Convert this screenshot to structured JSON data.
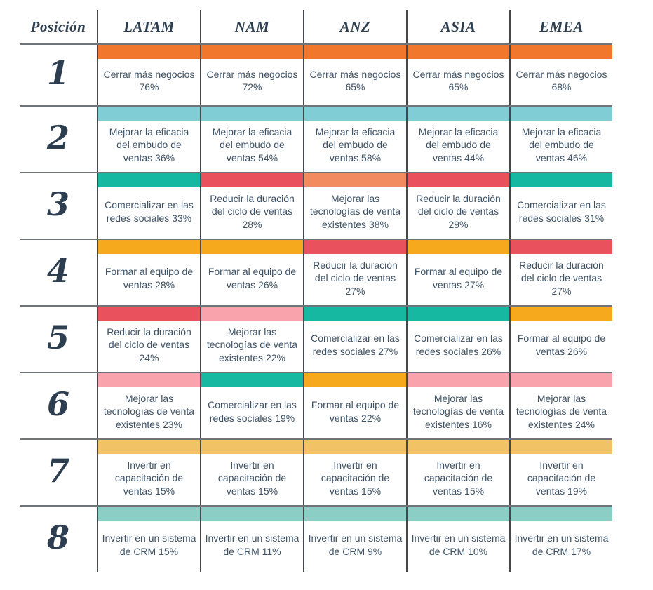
{
  "palette": {
    "orange": "#F0772B",
    "sky": "#81CDD6",
    "green": "#16B8A1",
    "red": "#E9515D",
    "salmon": "#F28B60",
    "amber": "#F6A91D",
    "pink": "#F9A4AD",
    "gold": "#F2C266",
    "seafoam": "#8BCEC6"
  },
  "text_colors": {
    "header": "#2c3e50",
    "body": "#3e5266"
  },
  "chart_data": {
    "type": "table",
    "title": "",
    "columns": [
      "Posición",
      "LATAM",
      "NAM",
      "ANZ",
      "ASIA",
      "EMEA"
    ],
    "rows": [
      {
        "position": "1",
        "cells": [
          {
            "label": "Cerrar más negocios",
            "pct": 76,
            "color": "orange"
          },
          {
            "label": "Cerrar más negocios",
            "pct": 72,
            "color": "orange"
          },
          {
            "label": "Cerrar más negocios",
            "pct": 65,
            "color": "orange"
          },
          {
            "label": "Cerrar más negocios",
            "pct": 65,
            "color": "orange"
          },
          {
            "label": "Cerrar más negocios",
            "pct": 68,
            "color": "orange"
          }
        ]
      },
      {
        "position": "2",
        "cells": [
          {
            "label": "Mejorar la eficacia del embudo de ventas",
            "pct": 36,
            "color": "sky"
          },
          {
            "label": "Mejorar la eficacia del embudo de ventas",
            "pct": 54,
            "color": "sky"
          },
          {
            "label": "Mejorar la eficacia del embudo de ventas",
            "pct": 58,
            "color": "sky"
          },
          {
            "label": "Mejorar la eficacia del embudo de ventas",
            "pct": 44,
            "color": "sky"
          },
          {
            "label": "Mejorar la eficacia del embudo de ventas",
            "pct": 46,
            "color": "sky"
          }
        ]
      },
      {
        "position": "3",
        "cells": [
          {
            "label": "Comercializar en las redes sociales",
            "pct": 33,
            "color": "green"
          },
          {
            "label": "Reducir la duración del ciclo de ventas",
            "pct": 28,
            "color": "red"
          },
          {
            "label": "Mejorar las tecnologías de venta existentes",
            "pct": 38,
            "color": "salmon"
          },
          {
            "label": "Reducir la duración del ciclo de ventas",
            "pct": 29,
            "color": "red"
          },
          {
            "label": "Comercializar en las redes sociales",
            "pct": 31,
            "color": "green"
          }
        ]
      },
      {
        "position": "4",
        "cells": [
          {
            "label": "Formar al equipo de ventas",
            "pct": 28,
            "color": "amber"
          },
          {
            "label": "Formar al equipo de ventas",
            "pct": 26,
            "color": "amber"
          },
          {
            "label": "Reducir la duración del ciclo de ventas",
            "pct": 27,
            "color": "red"
          },
          {
            "label": "Formar al equipo de ventas",
            "pct": 27,
            "color": "amber"
          },
          {
            "label": "Reducir la duración del ciclo de ventas",
            "pct": 27,
            "color": "red"
          }
        ]
      },
      {
        "position": "5",
        "cells": [
          {
            "label": "Reducir la duración del ciclo de ventas",
            "pct": 24,
            "color": "red"
          },
          {
            "label": "Mejorar las tecnologías de venta existentes",
            "pct": 22,
            "color": "pink"
          },
          {
            "label": "Comercializar en las redes sociales",
            "pct": 27,
            "color": "green"
          },
          {
            "label": "Comercializar en las redes sociales",
            "pct": 26,
            "color": "green"
          },
          {
            "label": "Formar al equipo de ventas",
            "pct": 26,
            "color": "amber"
          }
        ]
      },
      {
        "position": "6",
        "cells": [
          {
            "label": "Mejorar las tecnologías de venta existentes",
            "pct": 23,
            "color": "pink"
          },
          {
            "label": "Comercializar en las redes sociales",
            "pct": 19,
            "color": "green"
          },
          {
            "label": "Formar al equipo de ventas",
            "pct": 22,
            "color": "amber"
          },
          {
            "label": "Mejorar las tecnologías de venta existentes",
            "pct": 16,
            "color": "pink"
          },
          {
            "label": "Mejorar las tecnologías de venta existentes",
            "pct": 24,
            "color": "pink"
          }
        ]
      },
      {
        "position": "7",
        "cells": [
          {
            "label": "Invertir en capacitación de ventas",
            "pct": 15,
            "color": "gold"
          },
          {
            "label": "Invertir en capacitación de ventas",
            "pct": 15,
            "color": "gold"
          },
          {
            "label": "Invertir en capacitación de ventas",
            "pct": 15,
            "color": "gold"
          },
          {
            "label": "Invertir en capacitación de ventas",
            "pct": 15,
            "color": "gold"
          },
          {
            "label": "Invertir en capacitación de ventas",
            "pct": 19,
            "color": "gold"
          }
        ]
      },
      {
        "position": "8",
        "cells": [
          {
            "label": "Invertir en un sistema de CRM",
            "pct": 15,
            "color": "seafoam"
          },
          {
            "label": "Invertir en un sistema de CRM",
            "pct": 11,
            "color": "seafoam"
          },
          {
            "label": "Invertir en un sistema de CRM",
            "pct": 9,
            "color": "seafoam"
          },
          {
            "label": "Invertir en un sistema de CRM",
            "pct": 10,
            "color": "seafoam"
          },
          {
            "label": "Invertir en un sistema de CRM",
            "pct": 17,
            "color": "seafoam"
          }
        ]
      }
    ]
  }
}
